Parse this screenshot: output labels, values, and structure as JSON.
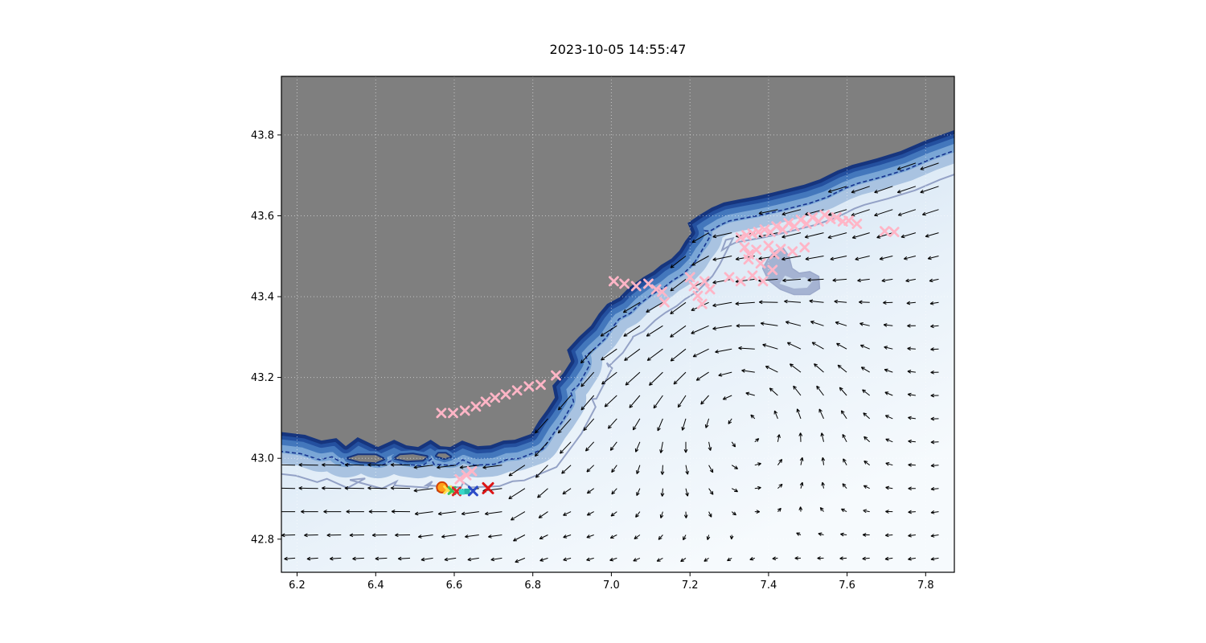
{
  "figure": {
    "title": "2023-10-05 14:55:47"
  },
  "chart_data": {
    "type": "heatmap",
    "subtype": "ocean-bathymetry-with-current-quiver-and-drifters",
    "title": "2023-10-05 14:55:47",
    "xlim": [
      6.16,
      7.873
    ],
    "ylim": [
      42.718,
      43.945
    ],
    "xticks": [
      6.2,
      6.4,
      6.6,
      6.8,
      7.0,
      7.2,
      7.4,
      7.6,
      7.8
    ],
    "yticks": [
      42.8,
      43.0,
      43.2,
      43.4,
      43.6,
      43.8
    ],
    "xtick_labels": [
      "6.2",
      "6.4",
      "6.6",
      "6.8",
      "7.0",
      "7.2",
      "7.4",
      "7.6",
      "7.8"
    ],
    "ytick_labels": [
      "42.8",
      "43.0",
      "43.2",
      "43.4",
      "43.6",
      "43.8"
    ],
    "colors": {
      "land": "#7f7f7f",
      "sea_stops": [
        "#9dbcde",
        "#cde0f2",
        "#e8f1f9",
        "#f6fafd"
      ],
      "bands": [
        "#a9c3e1",
        "#7aa6d6",
        "#4377bc",
        "#24509f",
        "#16357e"
      ],
      "isobath_dashed": "#16338f",
      "isobath_solid": "#8b99c0",
      "shallow_patch": "#96a5c9",
      "shallow_patch_inner": "#cfdeef",
      "grid": "rgba(255,255,255,0.55)",
      "quiver": "#000000",
      "pink_marker": "#ffb5c6"
    },
    "coast": [
      [
        6.16,
        43.065
      ],
      [
        6.22,
        43.058
      ],
      [
        6.262,
        43.044
      ],
      [
        6.3,
        43.05
      ],
      [
        6.324,
        43.03
      ],
      [
        6.354,
        43.052
      ],
      [
        6.38,
        43.04
      ],
      [
        6.406,
        43.028
      ],
      [
        6.447,
        43.046
      ],
      [
        6.478,
        43.032
      ],
      [
        6.508,
        43.028
      ],
      [
        6.54,
        43.046
      ],
      [
        6.565,
        43.03
      ],
      [
        6.59,
        43.028
      ],
      [
        6.62,
        43.044
      ],
      [
        6.66,
        43.03
      ],
      [
        6.692,
        43.032
      ],
      [
        6.725,
        43.044
      ],
      [
        6.754,
        43.046
      ],
      [
        6.795,
        43.06
      ],
      [
        6.815,
        43.092
      ],
      [
        6.836,
        43.12
      ],
      [
        6.856,
        43.15
      ],
      [
        6.85,
        43.18
      ],
      [
        6.877,
        43.21
      ],
      [
        6.897,
        43.24
      ],
      [
        6.887,
        43.268
      ],
      [
        6.917,
        43.3
      ],
      [
        6.948,
        43.328
      ],
      [
        6.968,
        43.358
      ],
      [
        6.989,
        43.382
      ],
      [
        7.02,
        43.398
      ],
      [
        7.04,
        43.418
      ],
      [
        7.061,
        43.434
      ],
      [
        7.081,
        43.448
      ],
      [
        7.106,
        43.462
      ],
      [
        7.126,
        43.478
      ],
      [
        7.153,
        43.494
      ],
      [
        7.173,
        43.514
      ],
      [
        7.188,
        43.538
      ],
      [
        7.204,
        43.558
      ],
      [
        7.194,
        43.582
      ],
      [
        7.224,
        43.602
      ],
      [
        7.255,
        43.62
      ],
      [
        7.286,
        43.633
      ],
      [
        7.327,
        43.641
      ],
      [
        7.368,
        43.648
      ],
      [
        7.409,
        43.657
      ],
      [
        7.45,
        43.667
      ],
      [
        7.491,
        43.677
      ],
      [
        7.53,
        43.69
      ],
      [
        7.575,
        43.712
      ],
      [
        7.613,
        43.726
      ],
      [
        7.675,
        43.742
      ],
      [
        7.736,
        43.76
      ],
      [
        7.798,
        43.786
      ],
      [
        7.873,
        43.812
      ]
    ],
    "coast_fn": [
      [
        6.16,
        43.05
      ],
      [
        6.5,
        43.02
      ],
      [
        6.78,
        43.05
      ],
      [
        6.9,
        43.24
      ],
      [
        7.0,
        43.38
      ],
      [
        7.15,
        43.48
      ],
      [
        7.25,
        43.6
      ],
      [
        7.45,
        43.65
      ],
      [
        7.6,
        43.7
      ],
      [
        7.873,
        43.81
      ]
    ],
    "islands": [
      [
        [
          6.33,
          43.0
        ],
        [
          6.36,
          42.992
        ],
        [
          6.4,
          42.99
        ],
        [
          6.42,
          42.998
        ],
        [
          6.4,
          43.008
        ],
        [
          6.355,
          43.008
        ]
      ],
      [
        [
          6.45,
          43.0
        ],
        [
          6.48,
          42.994
        ],
        [
          6.52,
          42.996
        ],
        [
          6.53,
          43.004
        ],
        [
          6.495,
          43.01
        ],
        [
          6.462,
          43.008
        ]
      ],
      [
        [
          6.555,
          43.006
        ],
        [
          6.575,
          43.0
        ],
        [
          6.59,
          43.004
        ],
        [
          6.578,
          43.012
        ],
        [
          6.56,
          43.012
        ]
      ]
    ],
    "shallow_patch": [
      [
        7.385,
        43.47
      ],
      [
        7.4,
        43.44
      ],
      [
        7.43,
        43.418
      ],
      [
        7.465,
        43.405
      ],
      [
        7.505,
        43.405
      ],
      [
        7.53,
        43.42
      ],
      [
        7.528,
        43.45
      ],
      [
        7.505,
        43.462
      ],
      [
        7.478,
        43.458
      ],
      [
        7.46,
        43.47
      ],
      [
        7.452,
        43.5
      ],
      [
        7.436,
        43.522
      ],
      [
        7.415,
        43.512
      ],
      [
        7.398,
        43.492
      ]
    ],
    "shallow_patch_inner": [
      [
        7.428,
        43.432
      ],
      [
        7.465,
        43.42
      ],
      [
        7.498,
        43.422
      ],
      [
        7.512,
        43.438
      ],
      [
        7.492,
        43.448
      ],
      [
        7.462,
        43.444
      ],
      [
        7.442,
        43.452
      ]
    ],
    "quiver": {
      "grid_dlon": 0.0585,
      "grid_dlat": 0.0575,
      "drift": [
        -0.38,
        -0.07
      ],
      "jet_speed": 1.15,
      "jet_center_dist": 0.05,
      "jet_width": 0.2,
      "eddy": {
        "center": [
          7.33,
          43.14
        ],
        "strength": 1.1,
        "radius": 0.18
      }
    },
    "markers": {
      "pink_x": [
        [
          7.329,
          43.546
        ],
        [
          7.344,
          43.552
        ],
        [
          7.359,
          43.556
        ],
        [
          7.374,
          43.56
        ],
        [
          7.39,
          43.566
        ],
        [
          7.405,
          43.56
        ],
        [
          7.42,
          43.574
        ],
        [
          7.436,
          43.566
        ],
        [
          7.451,
          43.582
        ],
        [
          7.466,
          43.574
        ],
        [
          7.482,
          43.59
        ],
        [
          7.497,
          43.58
        ],
        [
          7.512,
          43.596
        ],
        [
          7.528,
          43.586
        ],
        [
          7.543,
          43.602
        ],
        [
          7.558,
          43.592
        ],
        [
          7.573,
          43.596
        ],
        [
          7.589,
          43.586
        ],
        [
          7.604,
          43.588
        ],
        [
          7.625,
          43.58
        ],
        [
          7.696,
          43.562
        ],
        [
          7.72,
          43.56
        ],
        [
          7.339,
          43.522
        ],
        [
          7.369,
          43.516
        ],
        [
          7.4,
          43.526
        ],
        [
          7.431,
          43.518
        ],
        [
          7.461,
          43.512
        ],
        [
          7.492,
          43.522
        ],
        [
          7.35,
          43.505
        ],
        [
          7.415,
          43.505
        ],
        [
          7.349,
          43.492
        ],
        [
          7.38,
          43.482
        ],
        [
          7.41,
          43.466
        ],
        [
          7.359,
          43.452
        ],
        [
          7.329,
          43.438
        ],
        [
          7.386,
          43.438
        ],
        [
          7.3,
          43.448
        ],
        [
          7.006,
          43.438
        ],
        [
          7.033,
          43.432
        ],
        [
          7.063,
          43.426
        ],
        [
          7.094,
          43.432
        ],
        [
          7.114,
          43.418
        ],
        [
          7.129,
          43.412
        ],
        [
          7.135,
          43.386
        ],
        [
          7.2,
          43.448
        ],
        [
          7.21,
          43.426
        ],
        [
          7.22,
          43.402
        ],
        [
          7.237,
          43.438
        ],
        [
          7.251,
          43.418
        ],
        [
          7.231,
          43.382
        ],
        [
          6.567,
          43.112
        ],
        [
          6.597,
          43.112
        ],
        [
          6.627,
          43.118
        ],
        [
          6.655,
          43.128
        ],
        [
          6.68,
          43.14
        ],
        [
          6.704,
          43.15
        ],
        [
          6.731,
          43.158
        ],
        [
          6.76,
          43.168
        ],
        [
          6.79,
          43.178
        ],
        [
          6.82,
          43.182
        ],
        [
          6.859,
          43.205
        ],
        [
          6.614,
          42.948
        ],
        [
          6.631,
          42.958
        ],
        [
          6.645,
          42.968
        ]
      ],
      "special": [
        {
          "lon": 6.569,
          "lat": 42.928,
          "type": "circle",
          "color": "#ff9f1a",
          "edge": "#d43f00",
          "size": 13
        },
        {
          "lon": 6.583,
          "lat": 42.922,
          "type": "x",
          "color": "#ffe04a",
          "size": 8
        },
        {
          "lon": 6.594,
          "lat": 42.92,
          "type": "x",
          "color": "#39c25a",
          "size": 8
        },
        {
          "lon": 6.606,
          "lat": 42.918,
          "type": "x",
          "color": "#e02828",
          "size": 9
        },
        {
          "lon": 6.619,
          "lat": 42.917,
          "type": "square",
          "color": "#39d7c9",
          "size": 7
        },
        {
          "lon": 6.633,
          "lat": 42.918,
          "type": "square",
          "color": "#27b7a8",
          "size": 7
        },
        {
          "lon": 6.648,
          "lat": 42.919,
          "type": "x",
          "color": "#2b4bc8",
          "size": 10
        },
        {
          "lon": 6.686,
          "lat": 42.926,
          "type": "x",
          "color": "#dd1515",
          "size": 12
        }
      ]
    }
  }
}
